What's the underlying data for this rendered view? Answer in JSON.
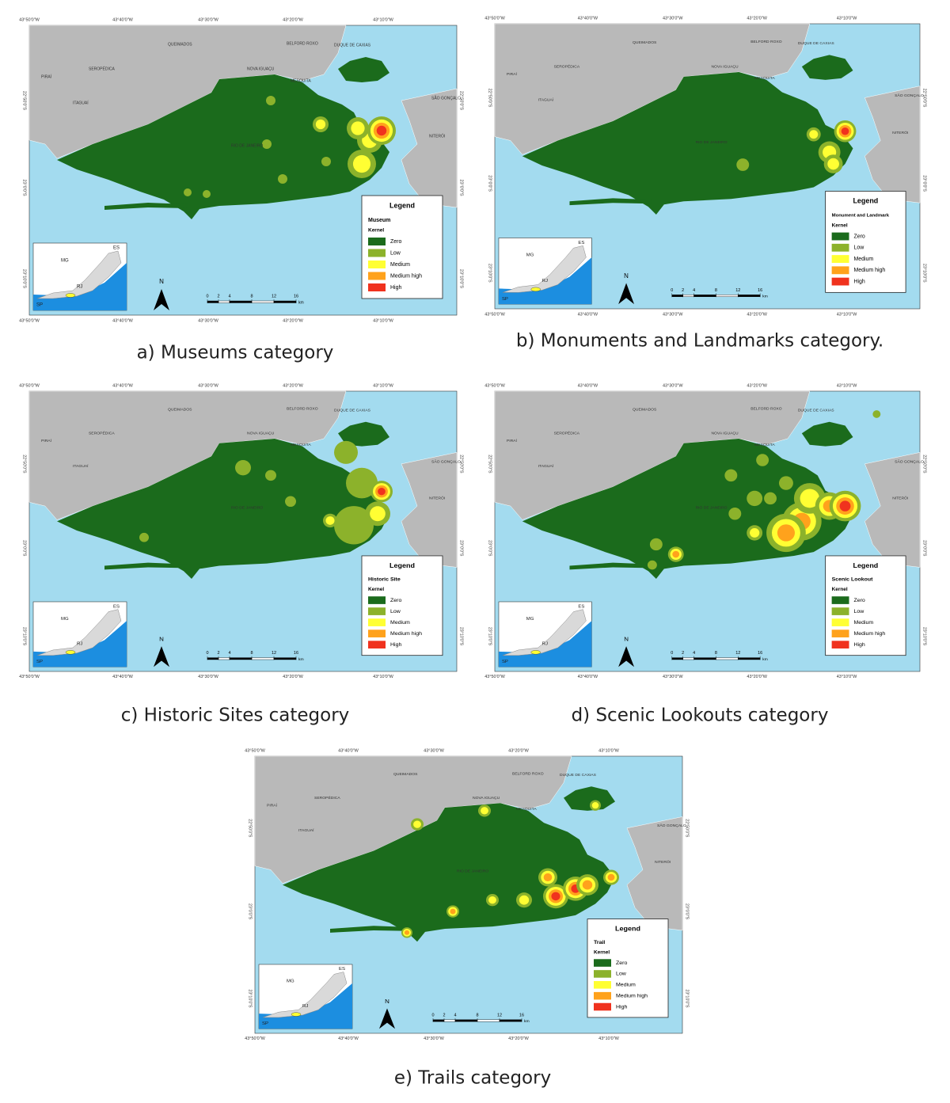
{
  "map_labels": {
    "lon_ticks": [
      "43°50'0\"W",
      "43°40'0\"W",
      "43°30'0\"W",
      "43°20'0\"W",
      "43°10'0\"W"
    ],
    "lat_ticks": [
      "22°50'0\"S",
      "23°0'0\"S",
      "23°10'0\"S"
    ],
    "places": [
      "PIRAÍ",
      "QUEIMADOS",
      "BELFORD ROXO",
      "DUQUE DE CAXIAS",
      "SEROPÉDICA",
      "NOVA IGUAÇU",
      "MESQUITA",
      "ITAGUAÍ",
      "SÃO GONÇALO",
      "NITERÓI",
      "RIO DE JANEIRO"
    ],
    "inset": [
      "MG",
      "ES",
      "RJ",
      "SP"
    ],
    "north": "N",
    "scale": {
      "ticks": [
        0,
        2,
        4,
        8,
        12,
        16
      ],
      "unit": "km"
    }
  },
  "legend": {
    "title": "Legend",
    "kernel": "Kernel",
    "classes": [
      {
        "label": "Zero",
        "color": "#1b6b1c"
      },
      {
        "label": "Low",
        "color": "#8cb22b"
      },
      {
        "label": "Medium",
        "color": "#ffff33"
      },
      {
        "label": "Medium high",
        "color": "#ffa21c"
      },
      {
        "label": "High",
        "color": "#f0321e"
      }
    ]
  },
  "panels": [
    {
      "caption": "a) Museums category",
      "legend_category": "Museum"
    },
    {
      "caption": "b) Monuments and Landmarks category.",
      "legend_category": "Monument and Landmark"
    },
    {
      "caption": "c) Historic Sites category",
      "legend_category": "Historic Site"
    },
    {
      "caption": "d) Scenic Lookouts category",
      "legend_category": "Scenic Lookout"
    },
    {
      "caption": "e) Trails category",
      "legend_category": "Trail"
    }
  ]
}
